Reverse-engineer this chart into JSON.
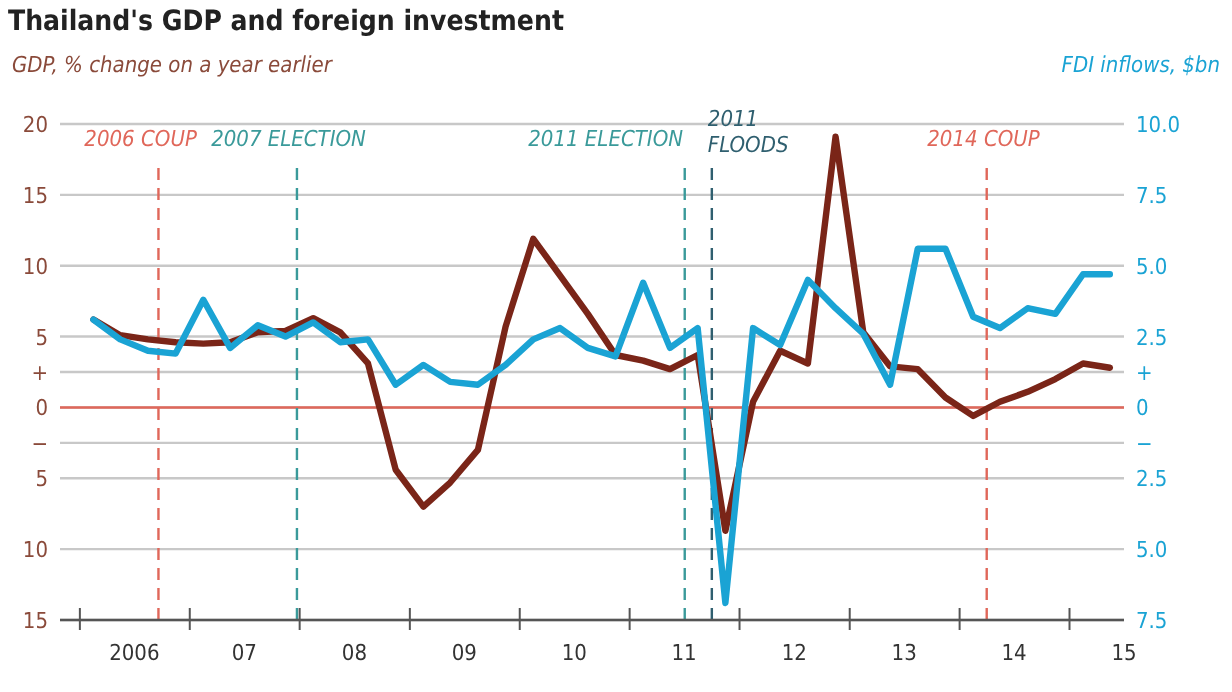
{
  "chart_data": {
    "type": "line",
    "title": "Thailand's GDP and foreign investment",
    "ylabel": "GDP, % change on a year earlier",
    "y2label": "FDI inflows, $bn",
    "x": [
      "2006-02-15",
      "2006-05-15",
      "2006-08-15",
      "2006-11-15",
      "2007-02-15",
      "2007-05-15",
      "2007-08-15",
      "2007-11-15",
      "2008-02-15",
      "2008-05-15",
      "2008-08-15",
      "2008-11-15",
      "2009-02-15",
      "2009-05-15",
      "2009-08-15",
      "2009-11-15",
      "2010-02-15",
      "2010-05-15",
      "2010-08-15",
      "2010-11-15",
      "2011-02-15",
      "2011-05-15",
      "2011-08-15",
      "2011-11-15",
      "2012-02-15",
      "2012-05-15",
      "2012-08-15",
      "2012-11-15",
      "2013-02-15",
      "2013-05-15",
      "2013-08-15",
      "2013-11-15",
      "2014-02-15",
      "2014-05-15",
      "2014-08-15",
      "2014-11-15",
      "2015-02-15",
      "2015-05-15"
    ],
    "series": [
      {
        "color": "#7a2518",
        "values": [
          6.2,
          5.1,
          4.8,
          4.6,
          4.5,
          4.6,
          5.3,
          5.4,
          6.3,
          5.3,
          3.1,
          -4.4,
          -7.0,
          -5.3,
          -3.0,
          5.7,
          11.9,
          9.3,
          6.6,
          3.7,
          3.3,
          2.7,
          3.7,
          -8.7,
          0.4,
          4.0,
          3.1,
          19.1,
          5.3,
          2.9,
          2.7,
          0.7,
          -0.6,
          0.4,
          1.1,
          2.0,
          3.1,
          2.8
        ]
      },
      {
        "color": "#1aa3d4",
        "axis": "y2",
        "values": [
          3.1,
          2.4,
          2.0,
          1.9,
          3.8,
          2.1,
          2.9,
          2.5,
          3.0,
          2.3,
          2.4,
          0.8,
          1.5,
          0.9,
          0.8,
          1.5,
          2.4,
          2.8,
          2.1,
          1.8,
          4.4,
          2.1,
          2.8,
          -6.9,
          2.8,
          2.2,
          4.5,
          3.5,
          2.6,
          0.8,
          5.6,
          5.6,
          3.2,
          2.8,
          3.5,
          3.3,
          4.7,
          4.7
        ]
      }
    ],
    "xlim": [
      "2005-10-27",
      "2015-07-01"
    ],
    "xticks": [
      {
        "value": "2006",
        "label": null
      },
      {
        "value": "2006-07-01",
        "label": "2006"
      },
      {
        "value": "2007",
        "label": null
      },
      {
        "value": "2007-07-01",
        "label": "07"
      },
      {
        "value": "2008",
        "label": null
      },
      {
        "value": "2008-07-01",
        "label": "08"
      },
      {
        "value": "2009",
        "label": null
      },
      {
        "value": "2009-07-01",
        "label": "09"
      },
      {
        "value": "2010",
        "label": null
      },
      {
        "value": "2010-07-01",
        "label": "10"
      },
      {
        "value": "2011",
        "label": null
      },
      {
        "value": "2011-07-01",
        "label": "11"
      },
      {
        "value": "2012",
        "label": null
      },
      {
        "value": "2012-07-01",
        "label": "12"
      },
      {
        "value": "2013",
        "label": null
      },
      {
        "value": "2013-07-01",
        "label": "13"
      },
      {
        "value": "2014",
        "label": null
      },
      {
        "value": "2014-07-01",
        "label": "14"
      },
      {
        "value": "2015",
        "label": null
      },
      {
        "value": "2015-07-01",
        "label": "15"
      }
    ],
    "ylim": [
      -15,
      20
    ],
    "yticks": [
      20,
      15,
      10,
      5,
      {
        "value": 2.5,
        "label": "+"
      },
      0,
      {
        "value": -2.5,
        "label": "−"
      },
      {
        "value": -5,
        "label": "5"
      },
      {
        "value": -10,
        "label": "10"
      },
      {
        "value": -15,
        "label": "15"
      }
    ],
    "y2lim": [
      -7.5,
      10
    ],
    "y2ticks": [
      {
        "value": 10,
        "label": "10.0"
      },
      7.5,
      {
        "value": 5,
        "label": "5.0"
      },
      2.5,
      {
        "value": 1.25,
        "label": "+"
      },
      0,
      {
        "value": -1.25,
        "label": "−"
      },
      {
        "value": -2.5,
        "label": "2.5"
      },
      {
        "value": -5,
        "label": "5.0"
      },
      {
        "value": -7.5,
        "label": "7.5"
      }
    ],
    "grid": "y",
    "ref_lines": [
      {
        "axis": "y",
        "value": 0,
        "color": "#e0675a",
        "line_style": "solid"
      },
      {
        "axis": "x",
        "value": "2006-09-19",
        "label": "2006 COUP",
        "color": "#e0675a",
        "line_style": "dashed"
      },
      {
        "axis": "x",
        "value": "2007-12-23",
        "label": "2007 ELECTION",
        "color": "#3a9a9a",
        "line_style": "dashed"
      },
      {
        "axis": "x",
        "value": "2011-07-03",
        "label": "2011 ELECTION",
        "color": "#3a9a9a",
        "line_style": "dashed"
      },
      {
        "axis": "x",
        "value": "2011-10-01",
        "label": "2011\nFLOODS",
        "color": "#2f5f6f",
        "line_style": "dashed"
      },
      {
        "axis": "x",
        "value": "2014-04-01",
        "label": "2014 COUP",
        "color": "#e0675a",
        "line_style": "dashed"
      }
    ],
    "marker": "none",
    "line_style": "solid"
  }
}
